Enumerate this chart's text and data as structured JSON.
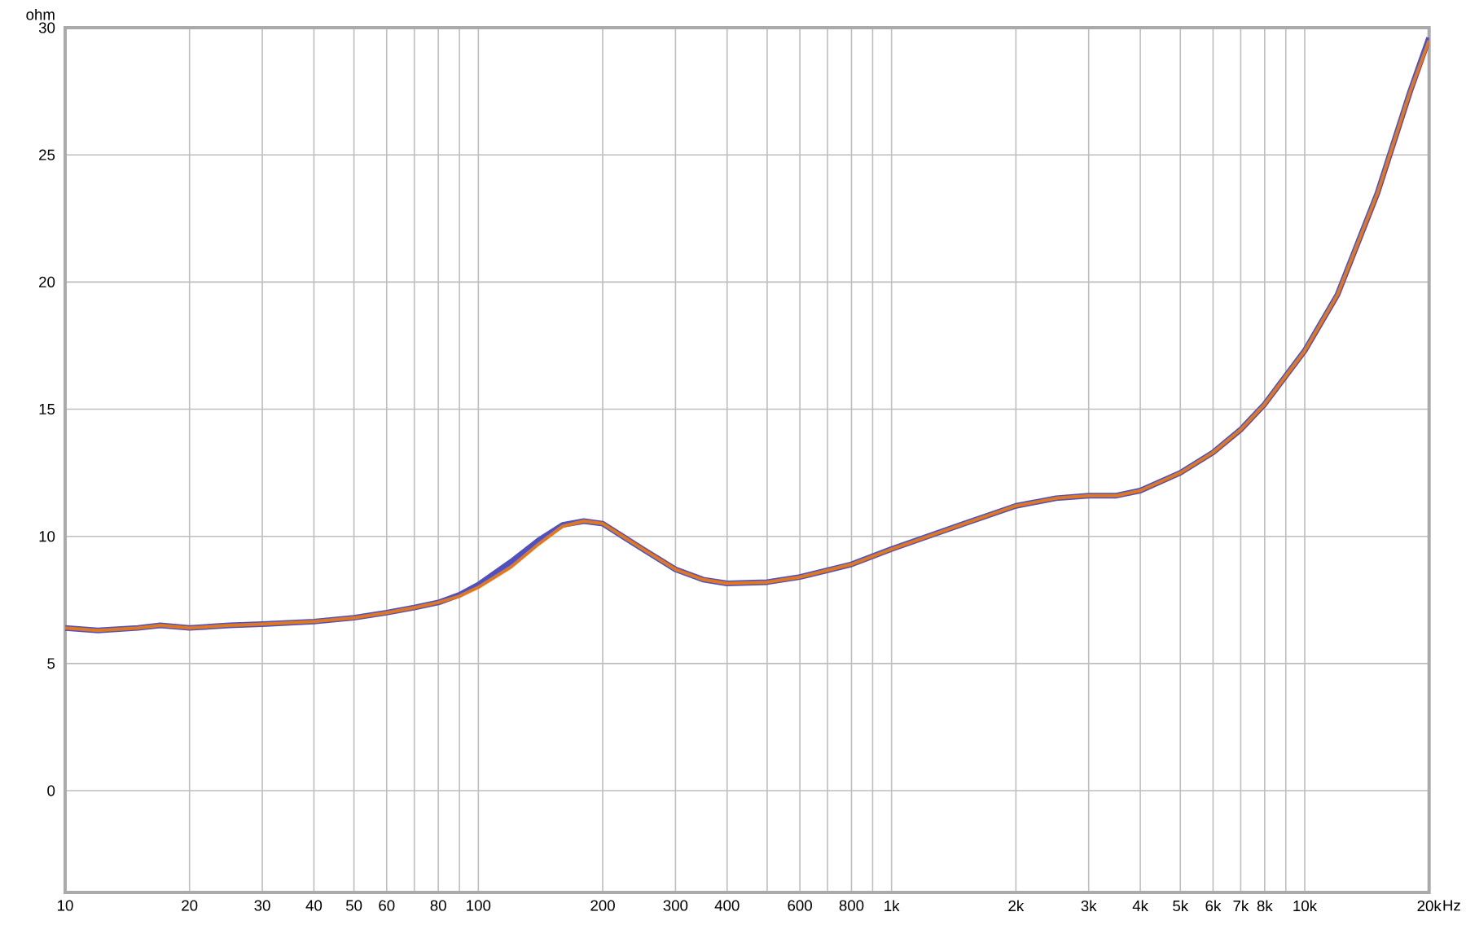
{
  "chart_data": {
    "type": "line",
    "ylabel": "ohm",
    "xlabel": "Hz",
    "x": [
      10,
      12,
      15,
      17,
      20,
      25,
      30,
      40,
      50,
      60,
      70,
      80,
      90,
      100,
      120,
      140,
      160,
      180,
      200,
      250,
      300,
      350,
      400,
      500,
      600,
      800,
      1000,
      1500,
      2000,
      2500,
      3000,
      3500,
      4000,
      5000,
      6000,
      7000,
      8000,
      10000,
      12000,
      15000,
      18000,
      20000
    ],
    "series": [
      {
        "color": "#5050c0",
        "values": [
          6.4,
          6.3,
          6.4,
          6.5,
          6.4,
          6.5,
          6.55,
          6.65,
          6.8,
          7.0,
          7.2,
          7.4,
          7.7,
          8.1,
          9.0,
          9.85,
          10.45,
          10.6,
          10.5,
          9.5,
          8.7,
          8.3,
          8.15,
          8.2,
          8.4,
          8.9,
          9.5,
          10.5,
          11.2,
          11.5,
          11.6,
          11.6,
          11.8,
          12.5,
          13.3,
          14.2,
          15.2,
          17.3,
          19.5,
          23.5,
          27.5,
          29.6
        ]
      },
      {
        "color": "#e07820",
        "values": [
          6.4,
          6.3,
          6.4,
          6.5,
          6.4,
          6.5,
          6.55,
          6.65,
          6.8,
          7.0,
          7.2,
          7.4,
          7.65,
          8.0,
          8.8,
          9.7,
          10.4,
          10.6,
          10.5,
          9.5,
          8.7,
          8.3,
          8.15,
          8.2,
          8.4,
          8.9,
          9.5,
          10.5,
          11.2,
          11.5,
          11.6,
          11.6,
          11.8,
          12.5,
          13.3,
          14.2,
          15.2,
          17.3,
          19.5,
          23.5,
          27.5,
          29.5
        ]
      }
    ],
    "log": "x",
    "xlim": [
      10,
      20000
    ],
    "ylim": [
      -4,
      30
    ],
    "xticks": [
      10,
      20,
      30,
      40,
      50,
      60,
      {
        "value": 70,
        "label": null
      },
      80,
      {
        "value": 90,
        "label": null
      },
      100,
      200,
      300,
      400,
      {
        "value": 500,
        "label": null
      },
      600,
      {
        "value": 700,
        "label": null
      },
      800,
      {
        "value": 900,
        "label": null
      },
      {
        "value": 1000,
        "label": "1k"
      },
      {
        "value": 2000,
        "label": "2k"
      },
      {
        "value": 3000,
        "label": "3k"
      },
      {
        "value": 4000,
        "label": "4k"
      },
      {
        "value": 5000,
        "label": "5k"
      },
      {
        "value": 6000,
        "label": "6k"
      },
      {
        "value": 7000,
        "label": "7k"
      },
      {
        "value": 8000,
        "label": "8k"
      },
      {
        "value": 9000,
        "label": null
      },
      {
        "value": 10000,
        "label": "10k"
      },
      {
        "value": 20000,
        "label": "20k"
      }
    ],
    "yticks": [
      0,
      5,
      10,
      15,
      20,
      25,
      30
    ],
    "grid": true,
    "marker": "none",
    "line_style": "solid"
  }
}
